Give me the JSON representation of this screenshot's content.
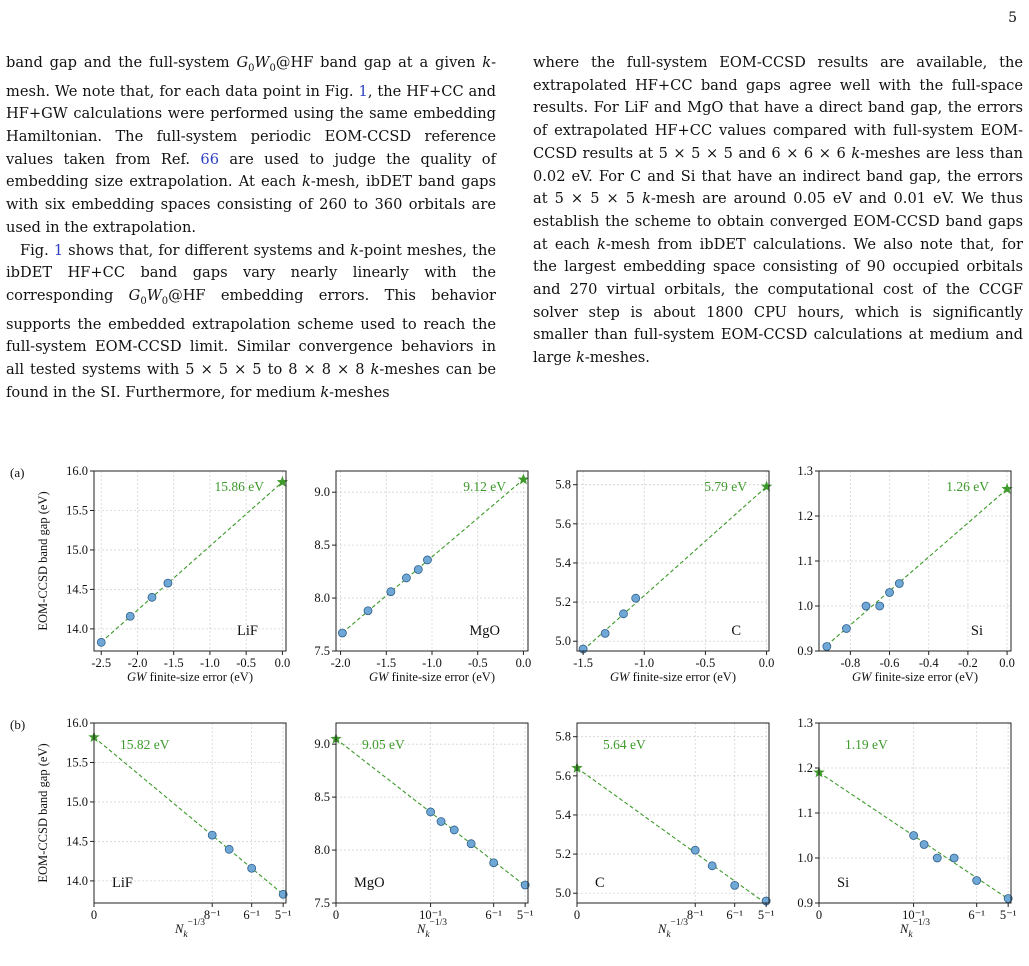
{
  "page_number": "5",
  "left_column": {
    "p1": [
      {
        "t": "band gap and the full-system "
      },
      {
        "t": "G",
        "i": true
      },
      {
        "t": "0",
        "sub": true
      },
      {
        "t": "W",
        "i": true
      },
      {
        "t": "0",
        "sub": true
      },
      {
        "t": "@HF band gap at a given "
      },
      {
        "t": "k",
        "i": true
      },
      {
        "t": "-mesh. We note that, for each data point in Fig. "
      },
      {
        "t": "1",
        "ref": true
      },
      {
        "t": ", the HF+CC and HF+GW calculations were performed using the same embedding Hamiltonian. The full-system periodic EOM-CCSD reference values taken from Ref. "
      },
      {
        "t": "66",
        "ref": true
      },
      {
        "t": " are used to judge the quality of embedding size extrapolation. At each "
      },
      {
        "t": "k",
        "i": true
      },
      {
        "t": "-mesh, ibDET band gaps with six embedding spaces consisting of 260 to 360 orbitals are used in the extrapolation."
      }
    ],
    "p2": [
      {
        "t": "Fig. "
      },
      {
        "t": "1",
        "ref": true
      },
      {
        "t": " shows that, for different systems and "
      },
      {
        "t": "k",
        "i": true
      },
      {
        "t": "-point meshes, the ibDET HF+CC band gaps vary nearly linearly with the corresponding "
      },
      {
        "t": "G",
        "i": true
      },
      {
        "t": "0",
        "sub": true
      },
      {
        "t": "W",
        "i": true
      },
      {
        "t": "0",
        "sub": true
      },
      {
        "t": "@HF embedding errors. This behavior supports the embedded extrapolation scheme used to reach the full-system EOM-CCSD limit. Similar convergence behaviors in all tested systems with 5 × 5 × 5 to 8 × 8 × 8 "
      },
      {
        "t": "k",
        "i": true
      },
      {
        "t": "-meshes can be found in the SI. Furthermore, for medium "
      },
      {
        "t": "k",
        "i": true
      },
      {
        "t": "-meshes"
      }
    ]
  },
  "right_column": {
    "p1": [
      {
        "t": "where the full-system EOM-CCSD results are available, the extrapolated HF+CC band gaps agree well with the full-space results. For LiF and MgO that have a direct band gap, the errors of extrapolated HF+CC values compared with full-system EOM-CCSD results at 5 × 5 × 5 and 6 × 6 × 6 "
      },
      {
        "t": "k",
        "i": true
      },
      {
        "t": "-meshes are less than 0.02 eV. For C and Si that have an indirect band gap, the errors at 5 × 5 × 5 "
      },
      {
        "t": "k",
        "i": true
      },
      {
        "t": "-mesh are around 0.05 eV and 0.01 eV. We thus establish the scheme to obtain converged EOM-CCSD band gaps at each "
      },
      {
        "t": "k",
        "i": true
      },
      {
        "t": "-mesh from ibDET calculations. We also note that, for the largest embedding space consisting of 90 occupied orbitals and 270 virtual orbitals, the computational cost of the CCGF solver step is about 1800 CPU hours, which is significantly smaller than full-system EOM-CCSD calculations at medium and large "
      },
      {
        "t": "k",
        "i": true
      },
      {
        "t": "-meshes."
      }
    ]
  },
  "figure": {
    "row_labels": [
      "(a)",
      "(b)"
    ],
    "ylabel": "EOM-CCSD band gap (eV)",
    "colors": {
      "marker": "#6fa8d6",
      "marker_edge": "#2f5f8a",
      "line": "#3d9a2b",
      "grid": "#d4d4d4"
    }
  },
  "chart_data": [
    {
      "type": "scatter",
      "panel": "(a) LiF",
      "system": "LiF",
      "xlabel": "GW finite-size error (eV)",
      "annotation": "15.86 eV",
      "xlim": [
        -2.6,
        0.05
      ],
      "ylim": [
        13.72,
        16.0
      ],
      "xticks": [
        -2.5,
        -2.0,
        -1.5,
        -1.0,
        -0.5,
        0.0
      ],
      "xtick_labels": [
        "-2.5",
        "-2.0",
        "-1.5",
        "-1.0",
        "-0.5",
        "0.0"
      ],
      "yticks": [
        14.0,
        14.5,
        15.0,
        15.5,
        16.0
      ],
      "ytick_labels": [
        "14.0",
        "14.5",
        "15.0",
        "15.5",
        "16.0"
      ],
      "x": [
        -2.5,
        -2.1,
        -1.8,
        -1.58
      ],
      "y": [
        13.83,
        14.16,
        14.4,
        14.58
      ],
      "extrapolated": [
        0.0,
        15.86
      ]
    },
    {
      "type": "scatter",
      "panel": "(a) MgO",
      "system": "MgO",
      "xlabel": "GW finite-size error (eV)",
      "annotation": "9.12 eV",
      "xlim": [
        -2.05,
        0.05
      ],
      "ylim": [
        7.5,
        9.2
      ],
      "xticks": [
        -2.0,
        -1.5,
        -1.0,
        -0.5,
        0.0
      ],
      "xtick_labels": [
        "-2.0",
        "-1.5",
        "-1.0",
        "-0.5",
        "0.0"
      ],
      "yticks": [
        7.5,
        8.0,
        8.5,
        9.0
      ],
      "ytick_labels": [
        "7.5",
        "8.0",
        "8.5",
        "9.0"
      ],
      "x": [
        -1.98,
        -1.7,
        -1.45,
        -1.28,
        -1.15,
        -1.05
      ],
      "y": [
        7.67,
        7.88,
        8.06,
        8.19,
        8.27,
        8.36
      ],
      "extrapolated": [
        0.0,
        9.12
      ]
    },
    {
      "type": "scatter",
      "panel": "(a) C",
      "system": "C",
      "xlabel": "GW finite-size error (eV)",
      "annotation": "5.79 eV",
      "xlim": [
        -1.55,
        0.02
      ],
      "ylim": [
        4.95,
        5.87
      ],
      "xticks": [
        -1.5,
        -1.0,
        -0.5,
        0.0
      ],
      "xtick_labels": [
        "-1.5",
        "-1.0",
        "-0.5",
        "0.0"
      ],
      "yticks": [
        5.0,
        5.2,
        5.4,
        5.6,
        5.8
      ],
      "ytick_labels": [
        "5.0",
        "5.2",
        "5.4",
        "5.6",
        "5.8"
      ],
      "x": [
        -1.5,
        -1.32,
        -1.17,
        -1.07
      ],
      "y": [
        4.96,
        5.04,
        5.14,
        5.22
      ],
      "extrapolated": [
        0.0,
        5.79
      ]
    },
    {
      "type": "scatter",
      "panel": "(a) Si",
      "system": "Si",
      "xlabel": "GW finite-size error (eV)",
      "annotation": "1.26 eV",
      "xlim": [
        -0.96,
        0.02
      ],
      "ylim": [
        0.9,
        1.3
      ],
      "xticks": [
        -0.8,
        -0.6,
        -0.4,
        -0.2,
        0.0
      ],
      "xtick_labels": [
        "-0.8",
        "-0.6",
        "-0.4",
        "-0.2",
        "0.0"
      ],
      "yticks": [
        0.9,
        1.0,
        1.1,
        1.2,
        1.3
      ],
      "ytick_labels": [
        "0.9",
        "1.0",
        "1.1",
        "1.2",
        "1.3"
      ],
      "x": [
        -0.92,
        -0.82,
        -0.72,
        -0.65,
        -0.6,
        -0.55
      ],
      "y": [
        0.91,
        0.95,
        1.0,
        1.0,
        1.03,
        1.05
      ],
      "extrapolated": [
        0.0,
        1.26
      ]
    },
    {
      "type": "scatter",
      "panel": "(b) LiF",
      "system": "LiF",
      "xlabel": "N_k^{-1/3}",
      "annotation": "15.82 eV",
      "xlim": [
        0,
        0.203
      ],
      "ylim": [
        13.72,
        16.0
      ],
      "xticks": [
        0,
        0.125,
        0.1667,
        0.2
      ],
      "xtick_labels": [
        "0",
        "8⁻¹",
        "6⁻¹",
        "5⁻¹"
      ],
      "yticks": [
        14.0,
        14.5,
        15.0,
        15.5,
        16.0
      ],
      "ytick_labels": [
        "14.0",
        "14.5",
        "15.0",
        "15.5",
        "16.0"
      ],
      "x": [
        0.125,
        0.1429,
        0.1667,
        0.2
      ],
      "y": [
        14.58,
        14.4,
        14.16,
        13.83
      ],
      "extrapolated": [
        0.0,
        15.82
      ]
    },
    {
      "type": "scatter",
      "panel": "(b) MgO",
      "system": "MgO",
      "xlabel": "N_k^{-1/3}",
      "annotation": "9.05 eV",
      "xlim": [
        0,
        0.203
      ],
      "ylim": [
        7.5,
        9.2
      ],
      "xticks": [
        0,
        0.1,
        0.1667,
        0.2
      ],
      "xtick_labels": [
        "0",
        "10⁻¹",
        "6⁻¹",
        "5⁻¹"
      ],
      "yticks": [
        7.5,
        8.0,
        8.5,
        9.0
      ],
      "ytick_labels": [
        "7.5",
        "8.0",
        "8.5",
        "9.0"
      ],
      "x": [
        0.1,
        0.1111,
        0.125,
        0.1429,
        0.1667,
        0.2
      ],
      "y": [
        8.36,
        8.27,
        8.19,
        8.06,
        7.88,
        7.67
      ],
      "extrapolated": [
        0.0,
        9.05
      ]
    },
    {
      "type": "scatter",
      "panel": "(b) C",
      "system": "C",
      "xlabel": "N_k^{-1/3}",
      "annotation": "5.64 eV",
      "xlim": [
        0,
        0.203
      ],
      "ylim": [
        4.95,
        5.87
      ],
      "xticks": [
        0,
        0.125,
        0.1667,
        0.2
      ],
      "xtick_labels": [
        "0",
        "8⁻¹",
        "6⁻¹",
        "5⁻¹"
      ],
      "yticks": [
        5.0,
        5.2,
        5.4,
        5.6,
        5.8
      ],
      "ytick_labels": [
        "5.0",
        "5.2",
        "5.4",
        "5.6",
        "5.8"
      ],
      "x": [
        0.125,
        0.1429,
        0.1667,
        0.2
      ],
      "y": [
        5.22,
        5.14,
        5.04,
        4.96
      ],
      "extrapolated": [
        0.0,
        5.64
      ]
    },
    {
      "type": "scatter",
      "panel": "(b) Si",
      "system": "Si",
      "xlabel": "N_k^{-1/3}",
      "annotation": "1.19 eV",
      "xlim": [
        0,
        0.203
      ],
      "ylim": [
        0.9,
        1.3
      ],
      "xticks": [
        0,
        0.1,
        0.1667,
        0.2
      ],
      "xtick_labels": [
        "0",
        "10⁻¹",
        "6⁻¹",
        "5⁻¹"
      ],
      "yticks": [
        0.9,
        1.0,
        1.1,
        1.2,
        1.3
      ],
      "ytick_labels": [
        "0.9",
        "1.0",
        "1.1",
        "1.2",
        "1.3"
      ],
      "x": [
        0.1,
        0.1111,
        0.125,
        0.1429,
        0.1667,
        0.2
      ],
      "y": [
        1.05,
        1.03,
        1.0,
        1.0,
        0.95,
        0.91
      ],
      "extrapolated": [
        0.0,
        1.19
      ]
    }
  ]
}
